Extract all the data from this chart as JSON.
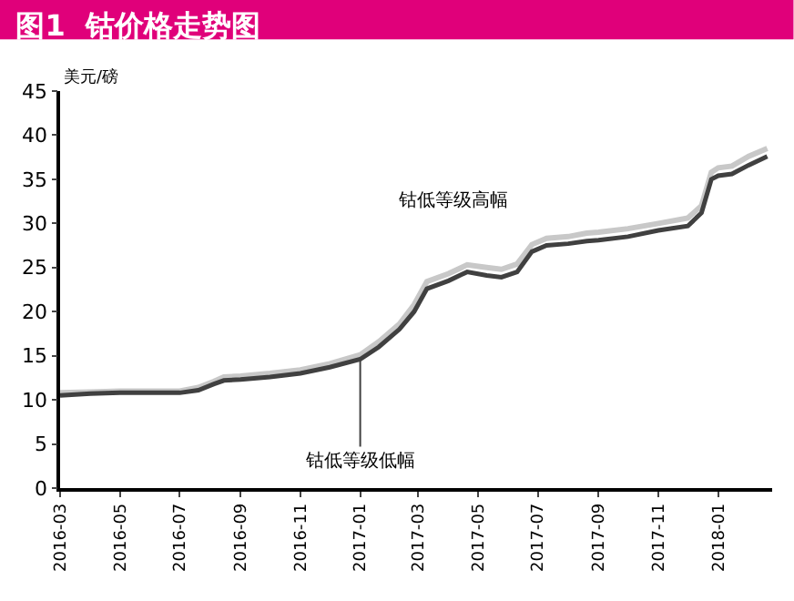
{
  "chart_data": {
    "type": "line",
    "title": "图1  钴价格走势图",
    "ylabel": "美元/磅",
    "x": [
      "2016-03-01",
      "2016-04-01",
      "2016-05-01",
      "2016-06-01",
      "2016-07-01",
      "2016-07-20",
      "2016-08-05",
      "2016-08-15",
      "2016-09-01",
      "2016-10-01",
      "2016-11-01",
      "2016-12-01",
      "2017-01-01",
      "2017-01-20",
      "2017-02-10",
      "2017-02-25",
      "2017-03-10",
      "2017-04-01",
      "2017-04-20",
      "2017-05-10",
      "2017-05-25",
      "2017-06-10",
      "2017-06-25",
      "2017-07-10",
      "2017-08-01",
      "2017-08-20",
      "2017-09-01",
      "2017-10-01",
      "2017-11-01",
      "2017-12-01",
      "2017-12-15",
      "2017-12-25",
      "2018-01-01",
      "2018-01-15",
      "2018-02-01",
      "2018-02-20"
    ],
    "series": [
      {
        "color": "#c8c8c8",
        "values": [
          10.8,
          10.9,
          11.0,
          11.0,
          11.0,
          11.4,
          12.1,
          12.6,
          12.7,
          13.0,
          13.4,
          14.1,
          15.1,
          16.6,
          18.6,
          20.8,
          23.4,
          24.3,
          25.3,
          25.0,
          24.8,
          25.4,
          27.6,
          28.3,
          28.5,
          28.9,
          29.0,
          29.4,
          30.0,
          30.6,
          32.0,
          35.8,
          36.3,
          36.5,
          37.6,
          38.5
        ]
      },
      {
        "color": "#404040",
        "values": [
          10.5,
          10.7,
          10.8,
          10.8,
          10.8,
          11.1,
          11.8,
          12.2,
          12.3,
          12.6,
          13.0,
          13.7,
          14.6,
          16.0,
          18.0,
          20.0,
          22.6,
          23.5,
          24.5,
          24.1,
          23.9,
          24.5,
          26.8,
          27.5,
          27.7,
          28.0,
          28.1,
          28.5,
          29.2,
          29.7,
          31.2,
          35.0,
          35.4,
          35.6,
          36.6,
          37.6
        ]
      }
    ],
    "ylim": [
      0,
      45
    ],
    "yticks": [
      0,
      5,
      10,
      15,
      20,
      25,
      30,
      35,
      40,
      45
    ],
    "xlim": [
      "2016-03-01",
      "2018-02-25"
    ],
    "xticks": [
      {
        "value": "2016-03-01",
        "label": "2016-03"
      },
      {
        "value": "2016-05-01",
        "label": "2016-05"
      },
      {
        "value": "2016-07-01",
        "label": "2016-07"
      },
      {
        "value": "2016-09-01",
        "label": "2016-09"
      },
      {
        "value": "2016-11-01",
        "label": "2016-11"
      },
      {
        "value": "2017-01-01",
        "label": "2017-01"
      },
      {
        "value": "2017-03-01",
        "label": "2017-03"
      },
      {
        "value": "2017-05-01",
        "label": "2017-05"
      },
      {
        "value": "2017-07-01",
        "label": "2017-07"
      },
      {
        "value": "2017-09-01",
        "label": "2017-09"
      },
      {
        "value": "2017-11-01",
        "label": "2017-11"
      },
      {
        "value": "2018-01-01",
        "label": "2018-01"
      }
    ],
    "annotations": [
      {
        "text": "钴低等级低幅",
        "x": "2017-01-01",
        "y": 14.6
      },
      "钴低等级高幅"
    ],
    "grid": false,
    "marker": "none",
    "line_style": "solid"
  }
}
